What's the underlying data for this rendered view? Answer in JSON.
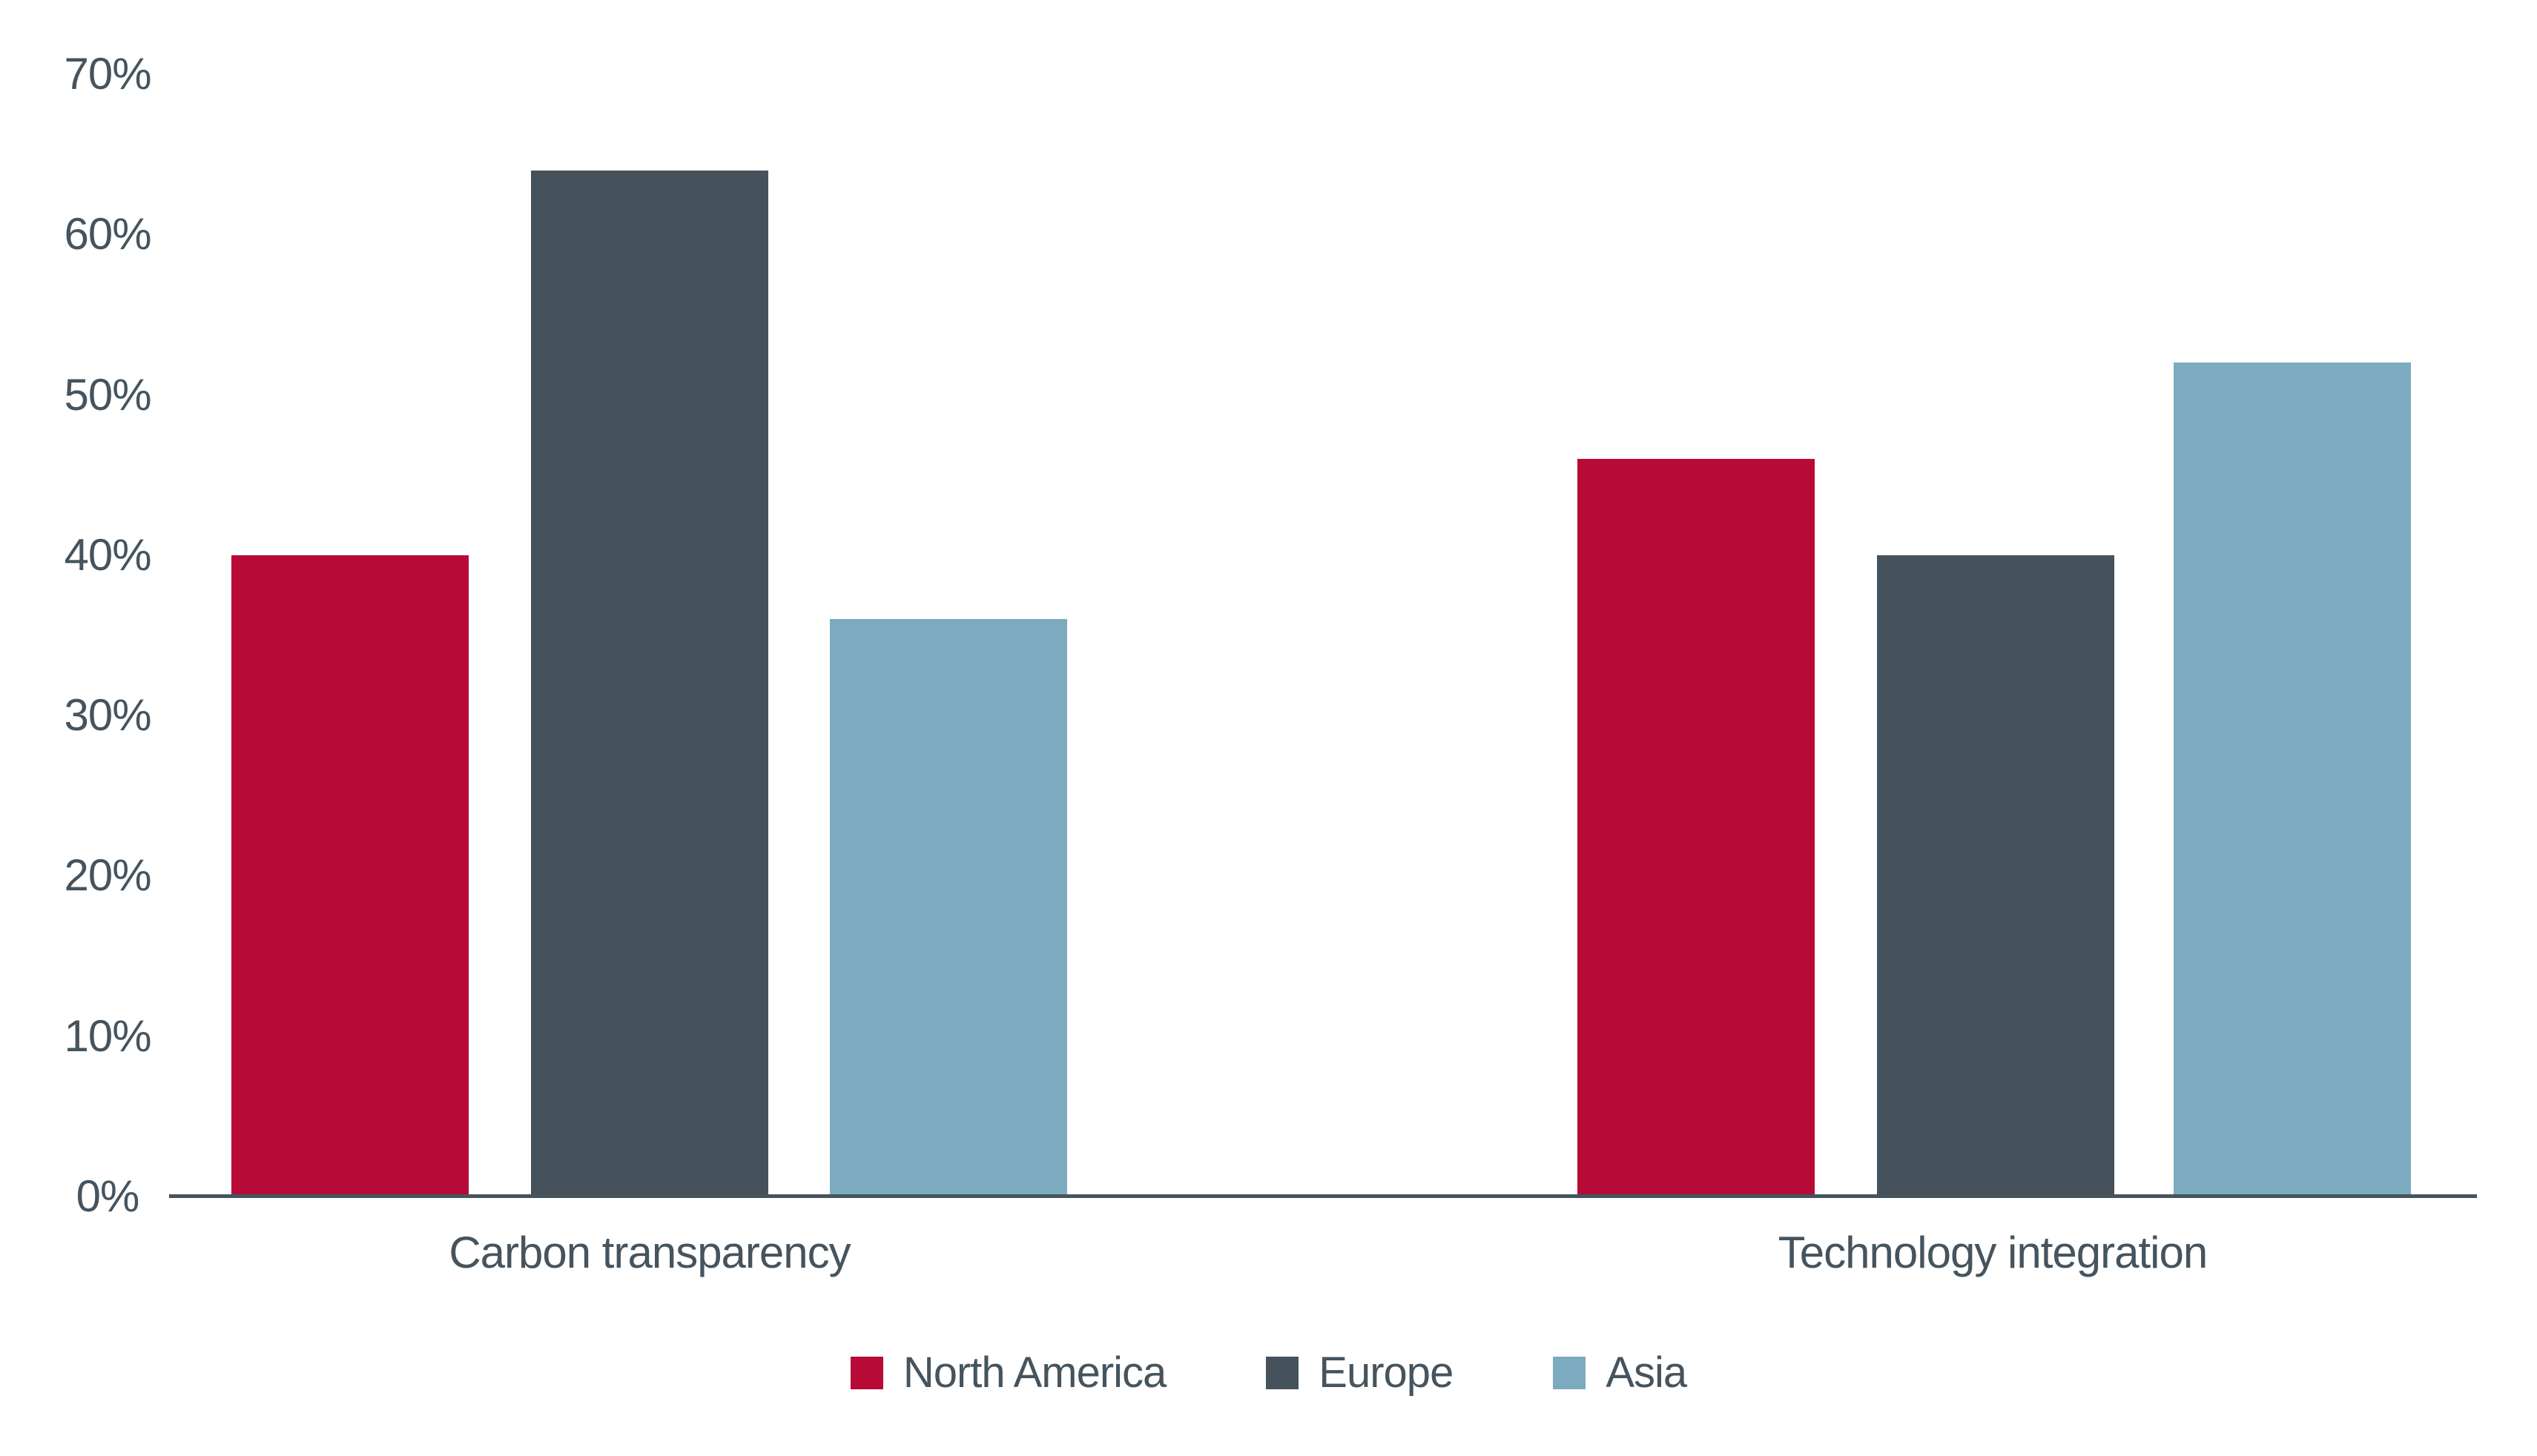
{
  "chart_data": {
    "type": "bar",
    "title": "",
    "categories": [
      "Carbon transparency",
      "Technology integration"
    ],
    "series": [
      {
        "name": "North America",
        "color": "#B70A37",
        "values": [
          40,
          46
        ]
      },
      {
        "name": "Europe",
        "color": "#45525C",
        "values": [
          64,
          40
        ]
      },
      {
        "name": "Asia",
        "color": "#7CAABF",
        "values": [
          36,
          52
        ]
      }
    ],
    "yaxis": {
      "ticks": [
        "0%",
        "10%",
        "20%",
        "30%",
        "40%",
        "50%",
        "60%",
        "70%"
      ],
      "tick_values": [
        0,
        10,
        20,
        30,
        40,
        50,
        60,
        70
      ],
      "min": 0,
      "max": 70,
      "grid": false
    },
    "xlabel": "",
    "ylabel": "",
    "legend_position": "bottom",
    "colors": {
      "background": "#FFFFFF",
      "text": "#45545E",
      "axis_line": "#45545E"
    }
  }
}
